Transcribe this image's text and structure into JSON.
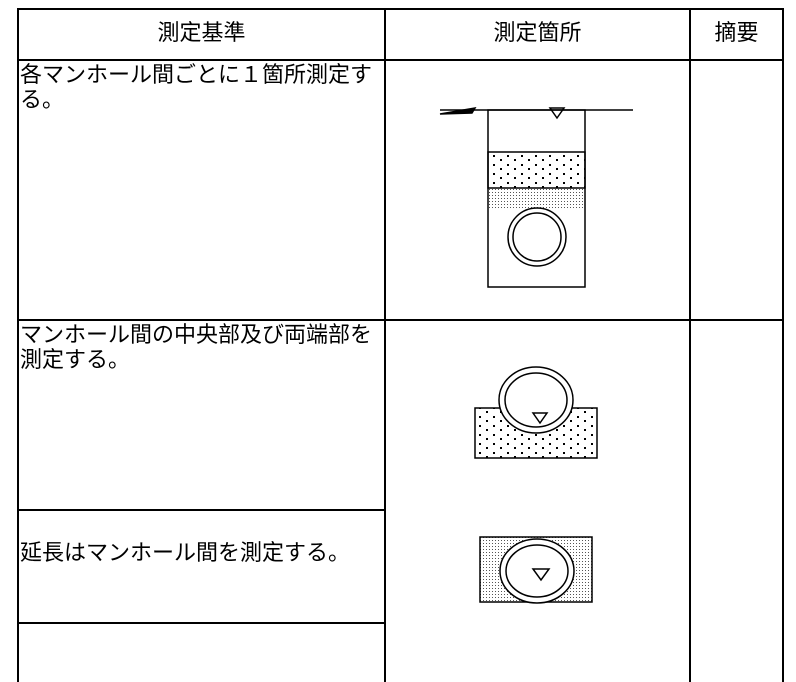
{
  "table": {
    "header": [
      "測定基準",
      "測定箇所",
      "摘要"
    ],
    "rows": [
      [
        "各マンホール間ごとに１箇所測定する。"
      ],
      [
        "マンホール間の中央部及び両端部を測定する。"
      ],
      [
        "延長はマンホール間を測定する。"
      ]
    ]
  }
}
